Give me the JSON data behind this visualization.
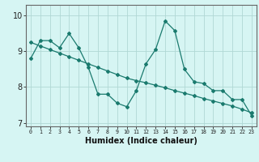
{
  "xlabel": "Humidex (Indice chaleur)",
  "background_color": "#d6f5f3",
  "grid_color": "#b0d8d5",
  "line_color": "#1a7a6e",
  "x_values": [
    0,
    1,
    2,
    3,
    4,
    5,
    6,
    7,
    8,
    9,
    10,
    11,
    12,
    13,
    14,
    15,
    16,
    17,
    18,
    19,
    20,
    21,
    22,
    23
  ],
  "y_jagged": [
    8.8,
    9.3,
    9.3,
    9.1,
    9.5,
    9.1,
    8.55,
    7.8,
    7.8,
    7.55,
    7.45,
    7.9,
    8.65,
    9.05,
    9.85,
    9.58,
    8.5,
    8.15,
    8.1,
    7.9,
    7.9,
    7.65,
    7.65,
    7.2
  ],
  "y_trend": [
    9.25,
    9.15,
    9.05,
    8.95,
    8.85,
    8.75,
    8.65,
    8.55,
    8.45,
    8.35,
    8.25,
    8.18,
    8.12,
    8.05,
    7.98,
    7.9,
    7.83,
    7.76,
    7.68,
    7.61,
    7.54,
    7.47,
    7.38,
    7.28
  ],
  "ylim": [
    6.9,
    10.3
  ],
  "yticks": [
    7,
    8,
    9,
    10
  ],
  "xlim": [
    -0.5,
    23.5
  ]
}
